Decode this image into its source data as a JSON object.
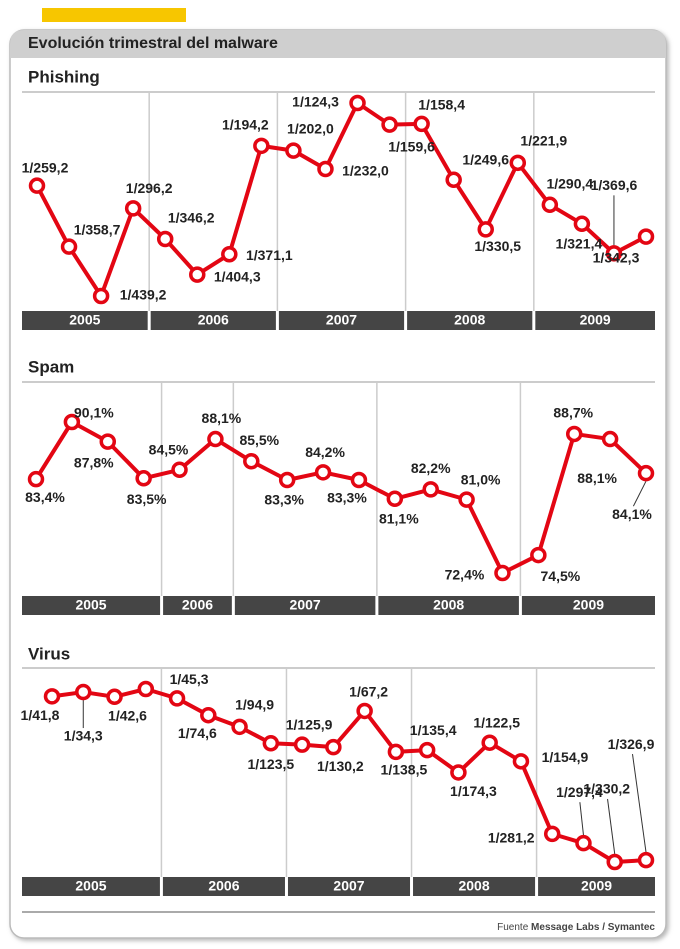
{
  "header": {
    "title": "Evolución trimestral del malware"
  },
  "chart_data": [
    {
      "type": "line",
      "title": "Phishing",
      "inverted": true,
      "color": "#e30613",
      "groups": [
        {
          "label": "2005",
          "values": [
            259.2,
            358.7,
            439.2,
            296.2
          ],
          "value_labels": [
            "1/259,2",
            "1/358,7",
            "1/439,2",
            "1/296,2"
          ]
        },
        {
          "label": "2006",
          "values": [
            346.2,
            404.3,
            371.1,
            194.2
          ],
          "value_labels": [
            "1/346,2",
            "1/404,3",
            "1/371,1",
            "1/194,2"
          ]
        },
        {
          "label": "2007",
          "values": [
            202.0,
            232.0,
            124.3,
            159.6
          ],
          "value_labels": [
            "1/202,0",
            "1/232,0",
            "1/124,3",
            "1/159,6"
          ]
        },
        {
          "label": "2008",
          "values": [
            158.4,
            249.6,
            330.5,
            221.9
          ],
          "value_labels": [
            "1/158,4",
            "1/249,6",
            "1/330,5",
            "1/221,9"
          ]
        },
        {
          "label": "2009",
          "values": [
            290.4,
            321.4,
            369.6,
            342.3
          ],
          "value_labels": [
            "1/290,4",
            "1/321,4",
            "1/369,6",
            "1/342,3"
          ]
        }
      ]
    },
    {
      "type": "line",
      "title": "Spam",
      "inverted": false,
      "color": "#e30613",
      "groups": [
        {
          "label": "2005",
          "values": [
            83.4,
            90.1,
            87.8,
            83.5
          ],
          "value_labels": [
            "83,4%",
            "90,1%",
            "87,8%",
            "83,5%"
          ]
        },
        {
          "label": "2006",
          "values": [
            84.5,
            88.1
          ],
          "value_labels": [
            "84,5%",
            "88,1%"
          ]
        },
        {
          "label": "2007",
          "values": [
            85.5,
            83.3,
            84.2,
            83.3
          ],
          "value_labels": [
            "85,5%",
            "83,3%",
            "84,2%",
            "83,3%"
          ]
        },
        {
          "label": "2008",
          "values": [
            81.1,
            82.2,
            81.0,
            72.4
          ],
          "value_labels": [
            "81,1%",
            "82,2%",
            "81,0%",
            "72,4%"
          ]
        },
        {
          "label": "2009",
          "values": [
            74.5,
            88.7,
            88.1,
            84.1
          ],
          "value_labels": [
            "74,5%",
            "88,7%",
            "88,1%",
            "84,1%"
          ]
        }
      ]
    },
    {
      "type": "line",
      "title": "Virus",
      "inverted": true,
      "color": "#e30613",
      "groups": [
        {
          "label": "2005",
          "values": [
            41.8,
            34.3,
            42.6,
            29
          ],
          "value_labels": [
            "1/41,8",
            "1/34,3",
            "1/42,6",
            null
          ]
        },
        {
          "label": "2006",
          "values": [
            45.3,
            74.6,
            94.9,
            123.5
          ],
          "value_labels": [
            "1/45,3",
            "1/74,6",
            "1/94,9",
            "1/123,5"
          ]
        },
        {
          "label": "2007",
          "values": [
            125.9,
            130.2,
            67.2,
            138.5
          ],
          "value_labels": [
            "1/125,9",
            "1/130,2",
            "1/67,2",
            "1/138,5"
          ]
        },
        {
          "label": "2008",
          "values": [
            135.4,
            174.3,
            122.5,
            154.9
          ],
          "value_labels": [
            "1/135,4",
            "1/174,3",
            "1/122,5",
            "1/154,9"
          ]
        },
        {
          "label": "2009",
          "values": [
            281.2,
            297.4,
            330.2,
            326.9
          ],
          "value_labels": [
            "1/281,2",
            "1/297,4",
            "1/330,2",
            "1/326,9"
          ]
        }
      ]
    }
  ],
  "footer": {
    "prefix": "Fuente",
    "source": "Message Labs / Symantec"
  }
}
